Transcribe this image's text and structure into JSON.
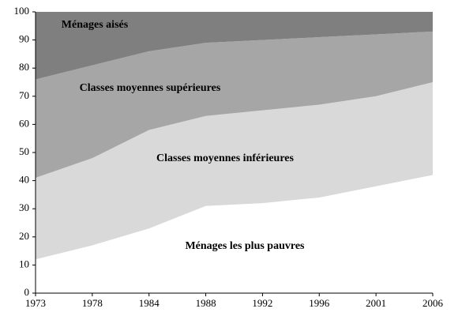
{
  "chart_data": {
    "type": "stacked-area",
    "categories": [
      "1973",
      "1978",
      "1984",
      "1988",
      "1992",
      "1996",
      "2001",
      "2006"
    ],
    "series": [
      {
        "name": "Ménages les plus pauvres",
        "color": "#ffffff",
        "values": [
          12,
          17,
          23,
          31,
          32,
          34,
          38,
          42
        ]
      },
      {
        "name": "Classes moyennes inférieures",
        "color": "#d9d9d9",
        "values": [
          29,
          31,
          35,
          32,
          33,
          33,
          32,
          33
        ]
      },
      {
        "name": "Classes moyennes supérieures",
        "color": "#a6a6a6",
        "values": [
          35,
          33,
          28,
          26,
          25,
          24,
          22,
          18
        ]
      },
      {
        "name": "Ménages aisés",
        "color": "#7f7f7f",
        "values": [
          24,
          19,
          14,
          11,
          10,
          9,
          8,
          7
        ]
      }
    ],
    "ylim": [
      0,
      100
    ],
    "yticks": [
      0,
      10,
      20,
      30,
      40,
      50,
      60,
      70,
      80,
      90,
      100
    ]
  }
}
